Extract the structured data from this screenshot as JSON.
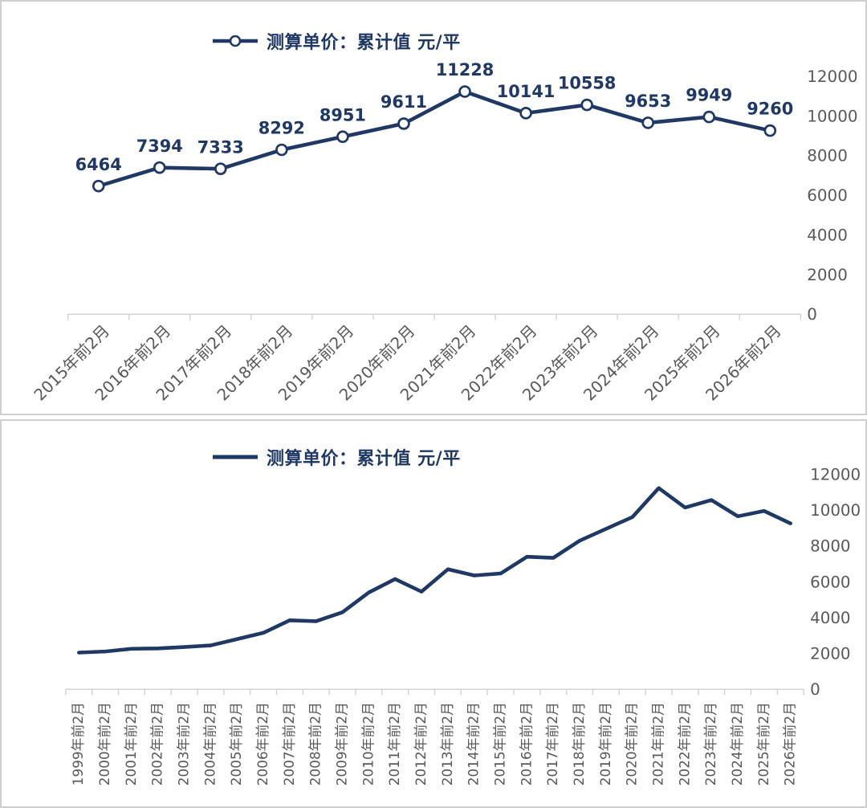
{
  "colors": {
    "series_line": "#1f3864",
    "marker_fill": "#ffffff",
    "data_label": "#1f3864",
    "legend_text": "#1f3864",
    "axis_text": "#595959",
    "axis_line": "#d0d0d0",
    "panel_border": "#cfcfcf",
    "background": "#ffffff"
  },
  "chart_data": [
    {
      "type": "line",
      "title": "",
      "legend": "测算单价：累计值 元/平",
      "legend_position": "top",
      "marker": "circle-open",
      "data_labels": true,
      "grid": false,
      "y_axis_side": "right",
      "x_label_rotation": -45,
      "ylim": [
        0,
        12000
      ],
      "yticks": [
        0,
        2000,
        4000,
        6000,
        8000,
        10000,
        12000
      ],
      "categories": [
        "2015年前2月",
        "2016年前2月",
        "2017年前2月",
        "2018年前2月",
        "2019年前2月",
        "2020年前2月",
        "2021年前2月",
        "2022年前2月",
        "2023年前2月",
        "2024年前2月",
        "2025年前2月",
        "2026年前2月"
      ],
      "values": [
        6464,
        7394,
        7333,
        8292,
        8951,
        9611,
        11228,
        10141,
        10558,
        9653,
        9949,
        9260
      ]
    },
    {
      "type": "line",
      "title": "",
      "legend": "测算单价：累计值 元/平",
      "legend_position": "top",
      "marker": "none",
      "data_labels": false,
      "grid": false,
      "y_axis_side": "right",
      "x_label_rotation": -90,
      "ylim": [
        0,
        12000
      ],
      "yticks": [
        0,
        2000,
        4000,
        6000,
        8000,
        10000,
        12000
      ],
      "categories": [
        "1999年前2月",
        "2000年前2月",
        "2001年前2月",
        "2002年前2月",
        "2003年前2月",
        "2004年前2月",
        "2005年前2月",
        "2006年前2月",
        "2007年前2月",
        "2008年前2月",
        "2009年前2月",
        "2010年前2月",
        "2011年前2月",
        "2012年前2月",
        "2013年前2月",
        "2014年前2月",
        "2015年前2月",
        "2016年前2月",
        "2017年前2月",
        "2018年前2月",
        "2019年前2月",
        "2020年前2月",
        "2021年前2月",
        "2022年前2月",
        "2023年前2月",
        "2024年前2月",
        "2025年前2月",
        "2026年前2月"
      ],
      "values": [
        2050,
        2110,
        2260,
        2280,
        2360,
        2450,
        2800,
        3150,
        3850,
        3800,
        4300,
        5400,
        6150,
        5450,
        6700,
        6350,
        6464,
        7394,
        7333,
        8292,
        8951,
        9611,
        11228,
        10141,
        10558,
        9653,
        9949,
        9260
      ]
    }
  ]
}
